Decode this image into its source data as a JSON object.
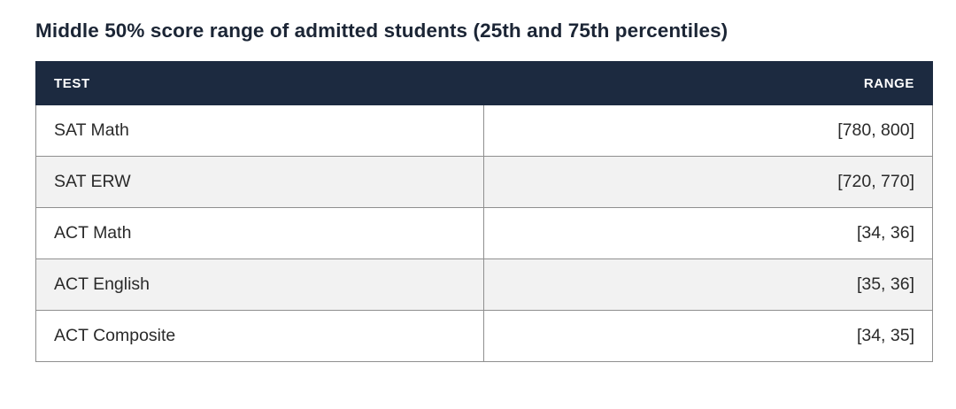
{
  "title": "Middle 50% score range of admitted students (25th and 75th percentiles)",
  "table": {
    "headers": {
      "test": "TEST",
      "range": "RANGE"
    },
    "rows": [
      {
        "test": "SAT Math",
        "range": "[780, 800]"
      },
      {
        "test": "SAT ERW",
        "range": "[720, 770]"
      },
      {
        "test": "ACT Math",
        "range": "[34, 36]"
      },
      {
        "test": "ACT English",
        "range": "[35, 36]"
      },
      {
        "test": "ACT Composite",
        "range": "[34, 35]"
      }
    ]
  },
  "colors": {
    "header_background": "#1c2a40",
    "header_text": "#ffffff",
    "striped_row": "#f2f2f2",
    "border": "#8f8f8f"
  }
}
